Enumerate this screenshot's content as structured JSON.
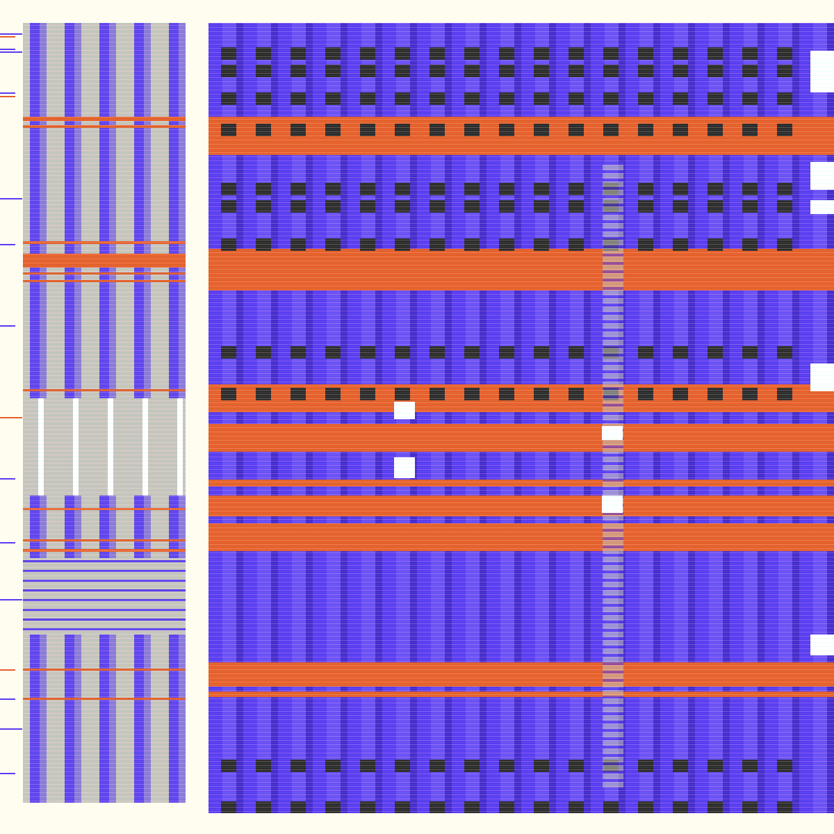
{
  "colors": {
    "background": "#FFFDF0",
    "violet": "#5B3AF0",
    "orange": "#E85E28",
    "gray": "#C9C4BC",
    "dark": "#2E2A2A",
    "cyan": "#3FE6E0",
    "white": "#FFFFFF"
  },
  "glitch": {
    "left_orange_bands": [
      168,
      180,
      347,
      365,
      392,
      403,
      560,
      686,
      731,
      776,
      790,
      962,
      1004
    ],
    "right_orange_bands": [
      178,
      200,
      365,
      388,
      567,
      585,
      630,
      700,
      758,
      775,
      960,
      995
    ],
    "right_dark_rows": [
      68,
      95,
      135,
      180,
      265,
      300,
      345,
      498,
      560,
      1090,
      1155
    ]
  }
}
